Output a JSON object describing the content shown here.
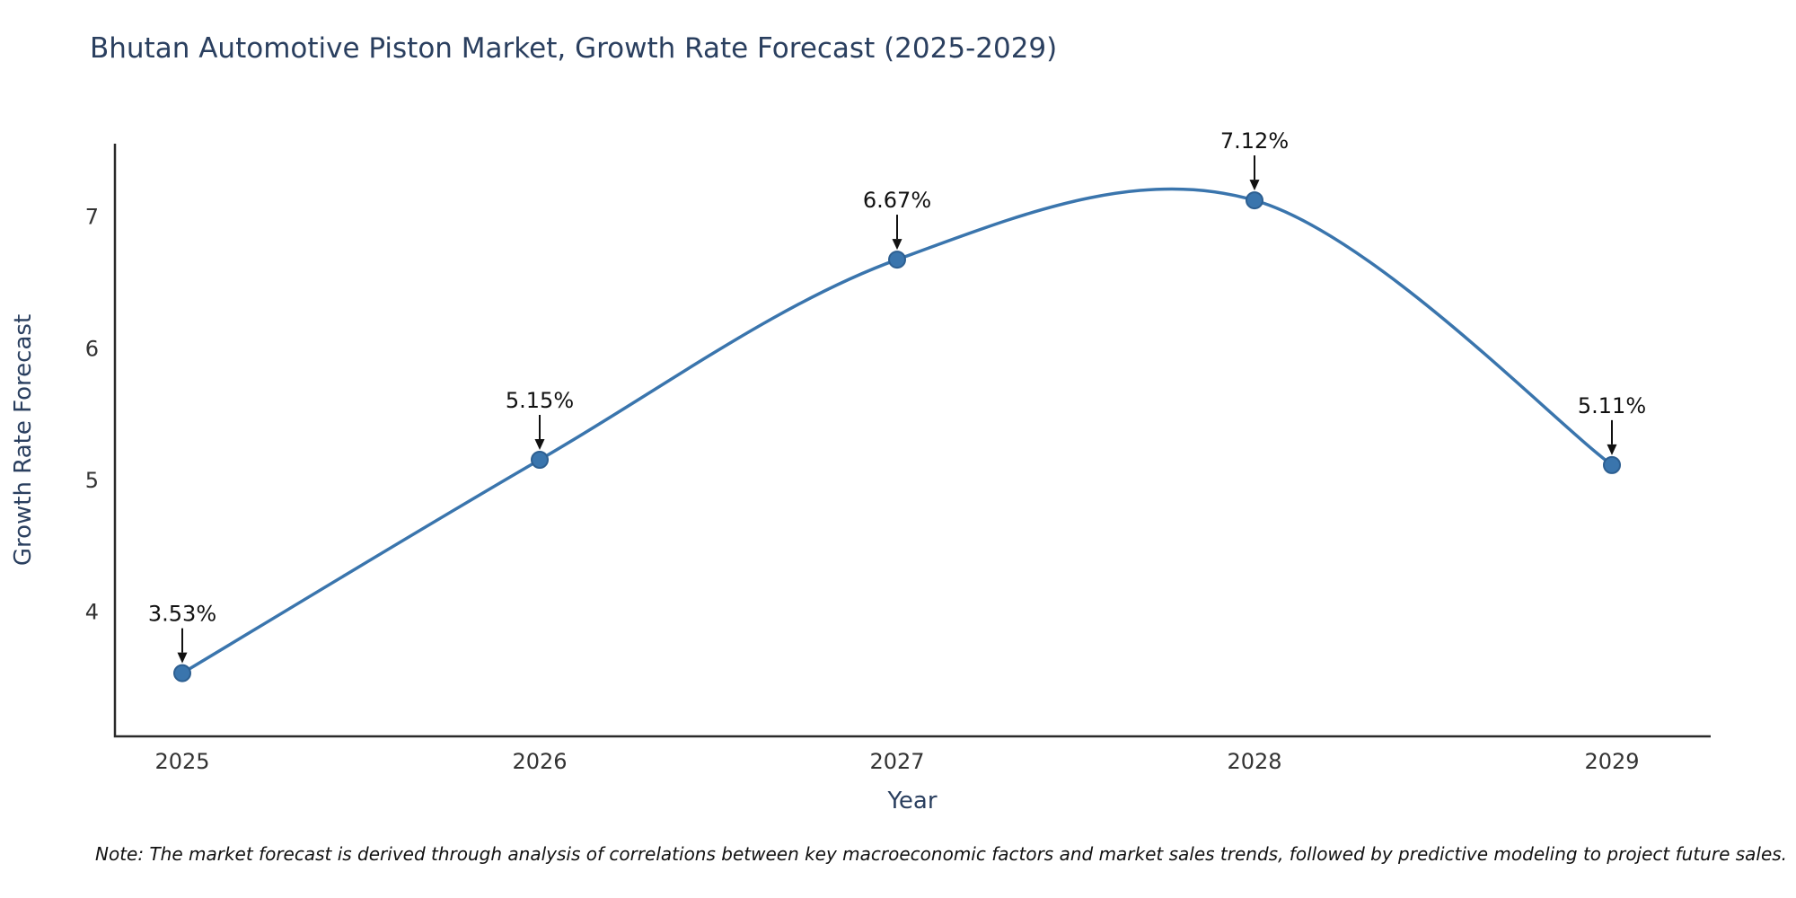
{
  "note": "Note: The market forecast is derived through analysis of correlations between key macroeconomic factors and market sales trends, followed by predictive modeling to project future sales.",
  "chart_data": {
    "type": "line",
    "title": "Bhutan Automotive Piston Market, Growth Rate Forecast (2025-2029)",
    "xlabel": "Year",
    "ylabel": "Growth Rate Forecast",
    "categories": [
      "2025",
      "2026",
      "2027",
      "2028",
      "2029"
    ],
    "values": [
      3.53,
      5.15,
      6.67,
      7.12,
      5.11
    ],
    "point_labels": [
      "3.53%",
      "5.15%",
      "6.67%",
      "7.12%",
      "5.11%"
    ],
    "yticks": [
      4,
      5,
      6,
      7
    ],
    "ylim": [
      3.05,
      7.55
    ],
    "grid": false,
    "legend": "none",
    "smooth": true,
    "line_color": "#3a75ad",
    "marker_color": "#3a75ad",
    "marker_edge_color": "#2d5f91",
    "annotation_color": "#111111",
    "axis_color": "#2a2a2a",
    "title_color": "#2a3f5f",
    "label_color": "#2a3f5f",
    "tick_color": "#333333"
  }
}
